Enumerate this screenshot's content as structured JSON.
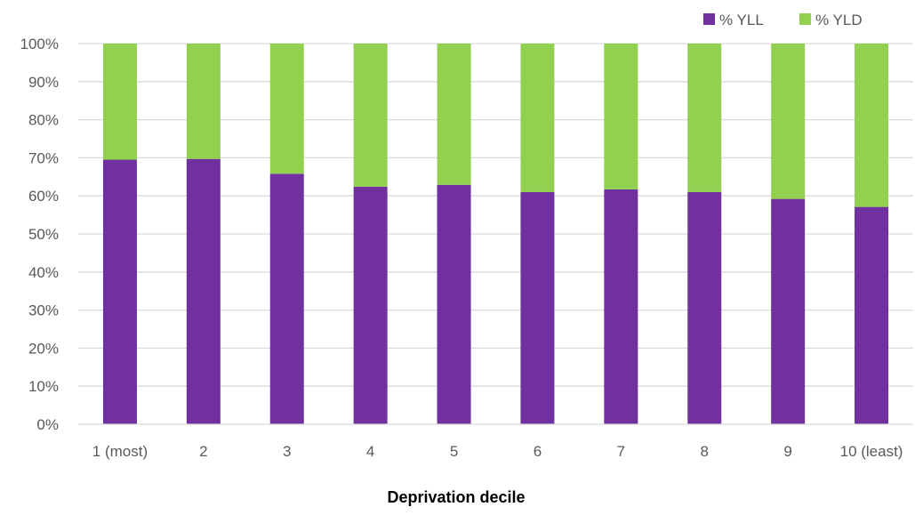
{
  "chart_data": {
    "type": "bar",
    "stacked": true,
    "percent_scale": true,
    "categories": [
      "1 (most)",
      "2",
      "3",
      "4",
      "5",
      "6",
      "7",
      "8",
      "9",
      "10 (least)"
    ],
    "series": [
      {
        "name": "% YLL",
        "color": "#7030A0",
        "values": [
          69.5,
          69.7,
          65.8,
          62.4,
          62.9,
          61.0,
          61.7,
          61.0,
          59.2,
          57.1
        ]
      },
      {
        "name": "% YLD",
        "color": "#92D050",
        "values": [
          30.5,
          30.3,
          34.2,
          37.6,
          37.1,
          39.0,
          38.3,
          39.0,
          40.8,
          42.9
        ]
      }
    ],
    "yticks": [
      "0%",
      "10%",
      "20%",
      "30%",
      "40%",
      "50%",
      "60%",
      "70%",
      "80%",
      "90%",
      "100%"
    ],
    "ylim": [
      0,
      100
    ],
    "xlabel": "Deprivation decile",
    "ylabel": "",
    "title": "",
    "grid": true,
    "legend_position": "top-right"
  }
}
